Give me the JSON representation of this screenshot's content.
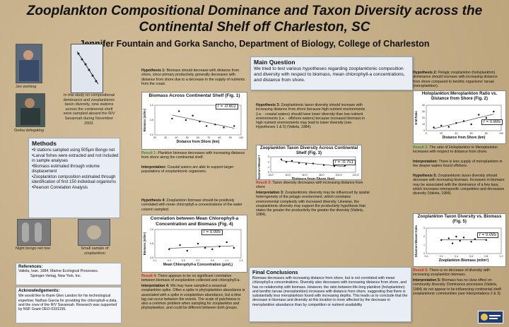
{
  "poster": {
    "title_line1": "Zooplankton Compositional Dominance and Taxon Diversity across the",
    "title_line2": "Continental Shelf off Charleston, SC",
    "authors": "Jennifer Fountain and Gorka Sancho, Department of Biology, College of Charleston"
  },
  "photos": {
    "jen_caption": "Jen working",
    "gorka_caption": "Gorka delegating",
    "net_caption": "Night bongo net tow",
    "sample_caption": "Small sample of zooplankton"
  },
  "intro": "In this study on compositional dominance and zooplanktonic taxon diversity, nine stations across the continental shelf were sampled aboard the R/V Savannah during November 2003.",
  "methods": {
    "heading": "Methods",
    "items": [
      "•9 stations sampled using 505µm Bongo net",
      "•Larval fishes were extracted and not included in sample analyses",
      "•Biomass estimated through volume displacement",
      "•Zooplankton composition estimated through identification of first 150 individual organisms",
      "•Pearson Correlation Analysis"
    ]
  },
  "references": {
    "heading": "References:",
    "line1": "Valiela, Ivan. 1984. Marine Ecological Processes.",
    "line2": "Springer-Verlag, New York, Inc."
  },
  "acknowledgements": {
    "heading": "Acknowledgements:",
    "text": "We would like to thank Glen Landon for his technological expertise; Nathan Garcia for providing the chlorophyll-a data, and the crew of the R/V Savannah. Research was supported by NSF Grant OEO-0331155."
  },
  "h1": {
    "label": "Hypothesis 1:",
    "text": "Biomass should decrease with distance from shore, since primary productivity generally decreases with distance from shore due to a decrease in the supply of nutrients from the coast.",
    "result_label": "Result 1:",
    "result": "Plankton biomass decreases with increasing distance from shore along the continental shelf.",
    "interp_label": "Interpretation:",
    "interp": "Coastal waters are able to support larger populations of zooplanktonic organisms."
  },
  "h4": {
    "label": "Hypothesis 4:",
    "text": "Zooplankton biomass should be positively correlated with mean chlorophyll-a concentrations of the water column sampled.",
    "result_label": "Result 4:",
    "result": "There appears to be no significant correlation between biomass of zooplankton collected and chlorophyll-a.",
    "interp_label": "Interpretation 4:",
    "interp": "We may have sampled a seasonal zooplankton spike. Often a spike in phytoplankton abundance is associated with a spike in zooplankton abundance, but a time lag can occur between the events. The scale of patchiness is also a common problem when sampling for zooplankton and phytoplankton, and could be different between both groups."
  },
  "main_question": {
    "heading": "Main Question",
    "text": "We tried to test various hypotheses regarding zooplanktonic composition and diversity with respect to biomass, mean chlorophyll-a concentrations, and distance from shore."
  },
  "h3": {
    "label": "Hypothesis 3:",
    "text": "Zooplanktonic taxon diversity should increase with increasing distance from shore because high nutrient environments (i.e. - coastal waters) should have lower diversity than low nutrient environments (i.e. - offshore waters) because increased biomass in high nutrient environments may lead to lower diversity (see Hypotheses 1 & 5) (Valiela, 1984).",
    "result_label": "Result 3:",
    "result": "Taxon diversity decreases with increasing distance from shore",
    "interp_label": "Interpretation 3:",
    "interp": "Zooplanktonic diversity may be influenced by spatial heterogeneity of the pelagic environment, which correlates environmental complexity with increased diversity. Likewise, the zooplanktonic diversity may support the productivity hypothesis that states the greater the productivity the greater the diversity (Valiela, 1984)."
  },
  "conclusions": {
    "heading": "Final Conclusions",
    "text": "Biomass decreases with increasing distance from shore, but is not correlated with mean chlorophyll-a concentrations. Diversity also decreases with increasing distance from shore, and has no relationship with biomass. However, the ratio between life-long plankton (holoplankton) and benthic larvae (meroplankton) increases with distance from shore, suggesting that there is substantially less meroplankton found with increasing depths. This leads us to conclude that the decrease in biomass and diversity at this location is more affected by the decrease in meroplankton abundance than by competition or nutrient availability"
  },
  "h2": {
    "label": "Hypothesis 2:",
    "text": "Pelagic zooplankton (holoplankton) dominance should increase with increasing distance from shore compared to benthic organisms' larvae (meroplankton).",
    "result_label": "Result 2:",
    "result": "The ratio of Holoplankton to Meroplankton increases with respect to distance from shore.",
    "interp_label": "Interpretation:",
    "interp": "There is less supply of meroplankton in the deeper waters found offshore."
  },
  "h5": {
    "label": "Hypothesis 5:",
    "text": "Zooplanktonic taxon diversity should decrease with increasing biomass. Increases in biomass may be associated with the dominance of a few taxa, which increases interspecific competition and decreases diversity (Valiela, 1984).",
    "result_label": "Result 5:",
    "result": "There is no decrease of diversity with increasing zooplankton biomass.",
    "interp_label": "Interpretation 5:",
    "interp": "Biomass has no clear effect on community diversity. Dominance processes (Valiela, 1984) do not appear to be influencing continental shelf zooplanktonic communities (see Interpretations 2 & 3)."
  },
  "chart_data": [
    {
      "type": "scatter",
      "title": "Biomass Across Continental Shelf (Fig. 1)",
      "xlabel": "Distance from Shore (km)",
      "ylabel": "Biomass (ml/m³)",
      "r_label": "r = -0.602",
      "xlim": [
        0,
        100
      ],
      "ylim": [
        0,
        1
      ],
      "x_ticks": [
        "20",
        "30",
        "40",
        "50",
        "60",
        "70",
        "80",
        "90",
        "100"
      ],
      "y_ticks": [
        "0.0",
        "0.5",
        "1.0"
      ],
      "x": [
        20,
        28,
        36,
        44,
        52,
        60,
        70,
        80,
        92
      ],
      "y": [
        0.55,
        0.8,
        0.5,
        0.65,
        0.45,
        0.3,
        0.35,
        0.25,
        0.3
      ]
    },
    {
      "type": "scatter",
      "title": "Correlation between Mean Chlorophyll-a Concentration and Biomass (Fig. 4)",
      "xlabel": "Mean Chlorophyll-a Concentration (µm/L)",
      "ylabel": "Biomass (ml/m³)",
      "r_label": "r = 0.095",
      "xlim": [
        0.1,
        1.3
      ],
      "ylim": [
        0,
        1
      ],
      "x_ticks": [
        "0.1",
        "0.3",
        "0.5",
        "0.7",
        "0.9",
        "1.1",
        "1.3"
      ],
      "y_ticks": [
        "0.0",
        "0.5",
        "1.0"
      ],
      "x": [
        0.3,
        0.45,
        0.55,
        0.7,
        0.8,
        0.9,
        1.0,
        1.1,
        1.2
      ],
      "y": [
        0.3,
        0.45,
        0.25,
        0.5,
        0.35,
        0.3,
        0.4,
        0.55,
        0.35
      ]
    },
    {
      "type": "scatter",
      "title": "Zooplankton Taxon Diversity Across Continental Shelf (Fig. 3)",
      "xlabel": "Distance from Shore (km)",
      "ylabel": "Shannon-Weaver Index",
      "r_label": "r = -0.751",
      "xlim": [
        0,
        120
      ],
      "ylim": [
        0,
        3
      ],
      "x_ticks": [
        "20.0",
        "40.0",
        "60.0",
        "80.0",
        "100.0",
        "120.0"
      ],
      "y_ticks": [
        "0",
        "1",
        "2",
        "3"
      ],
      "x": [
        15,
        22,
        30,
        40,
        50,
        60,
        75,
        90,
        105
      ],
      "y": [
        2.5,
        2.0,
        2.2,
        1.8,
        1.6,
        1.7,
        1.4,
        1.2,
        1.3
      ]
    },
    {
      "type": "scatter",
      "title": "Holoplankton:Meroplankton Ratio vs. Distance from Shore (Fig. 2)",
      "xlabel": "Distance from Shore (km)",
      "ylabel": "H:M Ratio",
      "r_label": "r = 0.695",
      "xlim": [
        0,
        100
      ],
      "ylim": [
        0,
        40
      ],
      "x_ticks": [
        "0",
        "20",
        "40",
        "60",
        "80",
        "100"
      ],
      "y_ticks": [
        "0",
        "10",
        "20",
        "30",
        "40"
      ],
      "x": [
        10,
        20,
        30,
        40,
        50,
        60,
        70,
        80,
        90
      ],
      "y": [
        5,
        8,
        6,
        12,
        15,
        10,
        25,
        20,
        30
      ]
    },
    {
      "type": "scatter",
      "title": "Zooplankton Taxon Diversity vs. Biomass (Fig. 5)",
      "xlabel": "Zooplankton Biomass (ml/m³)",
      "ylabel": "Shannon-Weaver Index",
      "r_label": "r = 0.095",
      "xlim": [
        0,
        1
      ],
      "ylim": [
        0,
        3
      ],
      "x_ticks": [
        "0.0",
        "0.2",
        "0.4",
        "0.6",
        "0.8",
        "1.0"
      ],
      "y_ticks": [
        "0",
        "1",
        "2",
        "3"
      ],
      "x": [
        0.2,
        0.3,
        0.35,
        0.4,
        0.45,
        0.5,
        0.6,
        0.65,
        0.8
      ],
      "y": [
        1.6,
        1.8,
        1.2,
        2.0,
        1.5,
        1.9,
        1.4,
        1.7,
        1.6
      ]
    }
  ]
}
